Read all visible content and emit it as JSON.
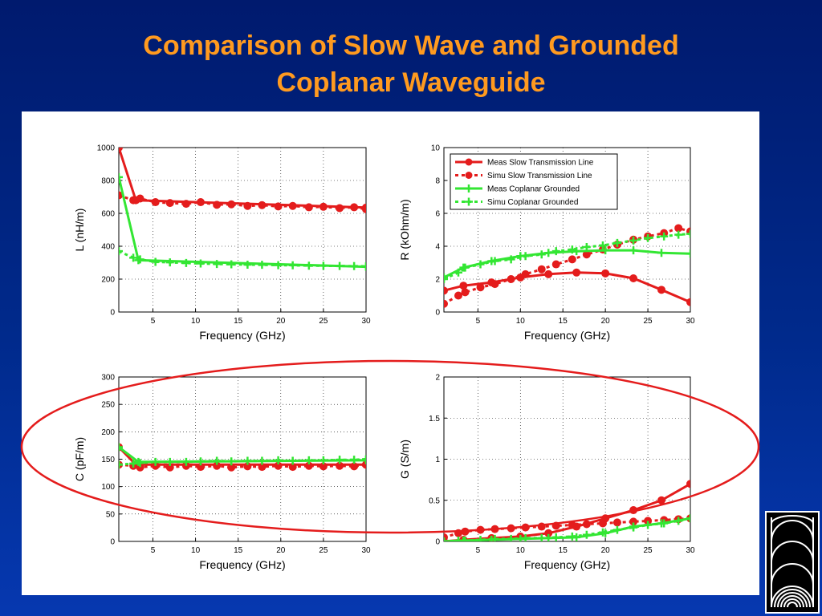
{
  "slide": {
    "title_line1": "Comparison of Slow Wave and Grounded",
    "title_line2": "Coplanar Waveguide"
  },
  "colors": {
    "red": "#e41c1c",
    "green": "#33e633",
    "title": "#ff9a1f",
    "ellipse": "#e41c1c"
  },
  "logo_icon": "concentric-arcs-logo-icon",
  "chart_data": [
    {
      "id": "L",
      "type": "line",
      "xlabel": "Frequency (GHz)",
      "ylabel": "L (nH/m)",
      "xlim": [
        1,
        30
      ],
      "ylim": [
        0,
        1000
      ],
      "xticks": [
        5,
        10,
        15,
        20,
        25,
        30
      ],
      "yticks": [
        0,
        200,
        400,
        600,
        800,
        1000
      ],
      "grid": true,
      "series": [
        {
          "style": "meas-red",
          "x": [
            1,
            3,
            30
          ],
          "values": [
            1000,
            680,
            635
          ]
        },
        {
          "style": "simu-red",
          "x": [
            1,
            2.7,
            3.5,
            5.3,
            7,
            8.9,
            10.6,
            12.5,
            14.2,
            16.1,
            17.8,
            19.7,
            21.4,
            23.3,
            25,
            26.9,
            28.6,
            30
          ],
          "values": [
            710,
            680,
            690,
            668,
            663,
            658,
            668,
            652,
            655,
            645,
            650,
            642,
            645,
            637,
            640,
            632,
            637,
            625
          ]
        },
        {
          "style": "meas-green",
          "x": [
            1,
            3.3,
            30
          ],
          "values": [
            820,
            315,
            275
          ]
        },
        {
          "style": "simu-green",
          "x": [
            1,
            2.7,
            3.5,
            5.3,
            7,
            8.9,
            10.6,
            12.5,
            14.2,
            16.1,
            17.8,
            19.7,
            21.4,
            23.3,
            25,
            26.9,
            28.6,
            30
          ],
          "values": [
            370,
            330,
            320,
            305,
            302,
            298,
            295,
            292,
            290,
            288,
            287,
            285,
            284,
            282,
            281,
            280,
            279,
            278
          ]
        }
      ]
    },
    {
      "id": "R",
      "type": "line",
      "xlabel": "Frequency (GHz)",
      "ylabel": "R (kOhm/m)",
      "xlim": [
        1,
        30
      ],
      "ylim": [
        0,
        10
      ],
      "xticks": [
        5,
        10,
        15,
        20,
        25,
        30
      ],
      "yticks": [
        0,
        2,
        4,
        6,
        8,
        10
      ],
      "grid": true,
      "legend_position": "top-left",
      "series": [
        {
          "name": "Meas  Slow Transmission Line",
          "style": "meas-red",
          "x": [
            1,
            3.3,
            6.6,
            10,
            13.3,
            16.6,
            20,
            23.3,
            26.6,
            30
          ],
          "values": [
            1.3,
            1.6,
            1.8,
            2.1,
            2.3,
            2.4,
            2.35,
            2.05,
            1.35,
            0.6
          ]
        },
        {
          "name": "Simu  Slow Transmission Line",
          "style": "simu-red",
          "x": [
            1,
            2.7,
            3.5,
            5.3,
            7,
            8.9,
            10.6,
            12.5,
            14.2,
            16.1,
            17.8,
            19.7,
            21.4,
            23.3,
            25,
            26.9,
            28.6,
            30
          ],
          "values": [
            0.5,
            1.0,
            1.2,
            1.5,
            1.7,
            2.0,
            2.3,
            2.6,
            2.9,
            3.2,
            3.5,
            3.8,
            4.1,
            4.4,
            4.6,
            4.8,
            5.1,
            4.9
          ]
        },
        {
          "name": "Meas Coplanar Grounded",
          "style": "meas-green",
          "x": [
            1,
            3.3,
            6.6,
            10,
            13.3,
            16.6,
            20,
            23.3,
            26.6,
            30
          ],
          "values": [
            2.1,
            2.7,
            3.1,
            3.4,
            3.6,
            3.7,
            3.75,
            3.75,
            3.6,
            3.55
          ]
        },
        {
          "name": "Simu Coplanar Grounded",
          "style": "simu-green",
          "x": [
            1,
            2.7,
            3.5,
            5.3,
            7,
            8.9,
            10.6,
            12.5,
            14.2,
            16.1,
            17.8,
            19.7,
            21.4,
            23.3,
            25,
            26.9,
            28.6,
            30
          ],
          "values": [
            2.0,
            2.4,
            2.7,
            2.9,
            3.1,
            3.2,
            3.4,
            3.5,
            3.7,
            3.8,
            3.95,
            4.05,
            4.2,
            4.35,
            4.5,
            4.6,
            4.7,
            4.75
          ]
        }
      ]
    },
    {
      "id": "C",
      "type": "line",
      "xlabel": "Frequency (GHz)",
      "ylabel": "C (pF/m)",
      "xlim": [
        1,
        30
      ],
      "ylim": [
        0,
        300
      ],
      "xticks": [
        5,
        10,
        15,
        20,
        25,
        30
      ],
      "yticks": [
        0,
        50,
        100,
        150,
        200,
        250,
        300
      ],
      "grid": true,
      "series": [
        {
          "style": "meas-red",
          "x": [
            1,
            3,
            30
          ],
          "values": [
            172,
            140,
            140
          ]
        },
        {
          "style": "simu-red",
          "x": [
            1,
            2.7,
            3.5,
            5.3,
            7,
            8.9,
            10.6,
            12.5,
            14.2,
            16.1,
            17.8,
            19.7,
            21.4,
            23.3,
            25,
            26.9,
            28.6,
            30
          ],
          "values": [
            140,
            138,
            135,
            138,
            135,
            138,
            136,
            138,
            135,
            137,
            136,
            138,
            136,
            138,
            137,
            138,
            137,
            140
          ]
        },
        {
          "style": "meas-green",
          "x": [
            1,
            3.3,
            30
          ],
          "values": [
            172,
            145,
            148
          ]
        },
        {
          "style": "simu-green",
          "x": [
            1,
            2.7,
            3.5,
            5.3,
            7,
            8.9,
            10.6,
            12.5,
            14.2,
            16.1,
            17.8,
            19.7,
            21.4,
            23.3,
            25,
            26.9,
            28.6,
            30
          ],
          "values": [
            140,
            142,
            143,
            145,
            145,
            145,
            146,
            147,
            146,
            147,
            147,
            148,
            147,
            148,
            148,
            149,
            149,
            150
          ]
        }
      ]
    },
    {
      "id": "G",
      "type": "line",
      "xlabel": "Frequency (GHz)",
      "ylabel": "G (S/m)",
      "xlim": [
        1,
        30
      ],
      "ylim": [
        0,
        2
      ],
      "xticks": [
        5,
        10,
        15,
        20,
        25,
        30
      ],
      "yticks": [
        0,
        0.5,
        1,
        1.5,
        2
      ],
      "grid": true,
      "series": [
        {
          "style": "meas-red",
          "x": [
            1,
            3.3,
            6.6,
            10,
            13.3,
            16.6,
            20,
            23.3,
            26.6,
            30
          ],
          "values": [
            0.0,
            0.02,
            0.04,
            0.06,
            0.1,
            0.18,
            0.28,
            0.38,
            0.5,
            0.7
          ]
        },
        {
          "style": "simu-red",
          "x": [
            1,
            2.7,
            3.5,
            5.3,
            7,
            8.9,
            10.6,
            12.5,
            14.2,
            16.1,
            17.8,
            19.7,
            21.4,
            23.3,
            25,
            26.9,
            28.6,
            30
          ],
          "values": [
            0.05,
            0.1,
            0.12,
            0.14,
            0.15,
            0.16,
            0.17,
            0.18,
            0.19,
            0.2,
            0.21,
            0.22,
            0.23,
            0.24,
            0.25,
            0.26,
            0.27,
            0.28
          ]
        },
        {
          "style": "meas-green",
          "x": [
            1,
            3.3,
            6.6,
            10,
            13.3,
            16.6,
            20,
            23.3,
            26.6,
            30
          ],
          "values": [
            0.0,
            0.01,
            0.02,
            0.03,
            0.04,
            0.05,
            0.1,
            0.18,
            0.22,
            0.28
          ]
        },
        {
          "style": "simu-green",
          "x": [
            1,
            2.7,
            3.5,
            5.3,
            7,
            8.9,
            10.6,
            12.5,
            14.2,
            16.1,
            17.8,
            19.7,
            21.4,
            23.3,
            25,
            26.9,
            28.6,
            30
          ],
          "values": [
            0.0,
            0.01,
            0.01,
            0.02,
            0.03,
            0.03,
            0.04,
            0.04,
            0.05,
            0.06,
            0.08,
            0.11,
            0.14,
            0.17,
            0.2,
            0.22,
            0.25,
            0.28
          ]
        }
      ]
    }
  ]
}
